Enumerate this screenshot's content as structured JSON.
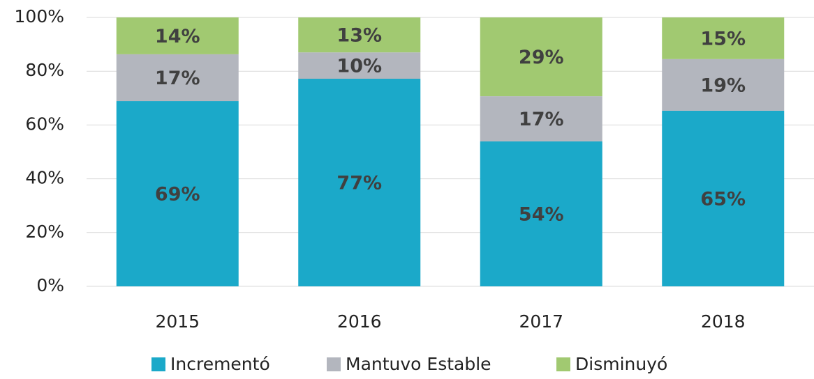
{
  "chart_data": {
    "type": "stacked_bar",
    "categories": [
      "2015",
      "2016",
      "2017",
      "2018"
    ],
    "series": [
      {
        "name": "Incrementó",
        "color": "#1ba9c9",
        "values": [
          68.9,
          77.2,
          53.9,
          65.3
        ],
        "value_labels": [
          "69%",
          "77%",
          "54%",
          "65%"
        ]
      },
      {
        "name": "Mantuvo Estable",
        "color": "#b3b6be",
        "values": [
          17.4,
          9.8,
          16.8,
          19.2
        ],
        "value_labels": [
          "17%",
          "10%",
          "17%",
          "19%"
        ]
      },
      {
        "name": "Disminuyó",
        "color": "#a1c971",
        "values": [
          13.7,
          13.0,
          29.3,
          15.5
        ],
        "value_labels": [
          "14%",
          "13%",
          "29%",
          "15%"
        ]
      }
    ],
    "ylim": [
      0,
      100
    ],
    "yticks": [
      {
        "value": 0,
        "label": "0%"
      },
      {
        "value": 20,
        "label": "20%"
      },
      {
        "value": 40,
        "label": "40%"
      },
      {
        "value": 60,
        "label": "60%"
      },
      {
        "value": 80,
        "label": "80%"
      },
      {
        "value": 100,
        "label": "100%"
      }
    ],
    "grid": true,
    "legend": "bottom"
  }
}
